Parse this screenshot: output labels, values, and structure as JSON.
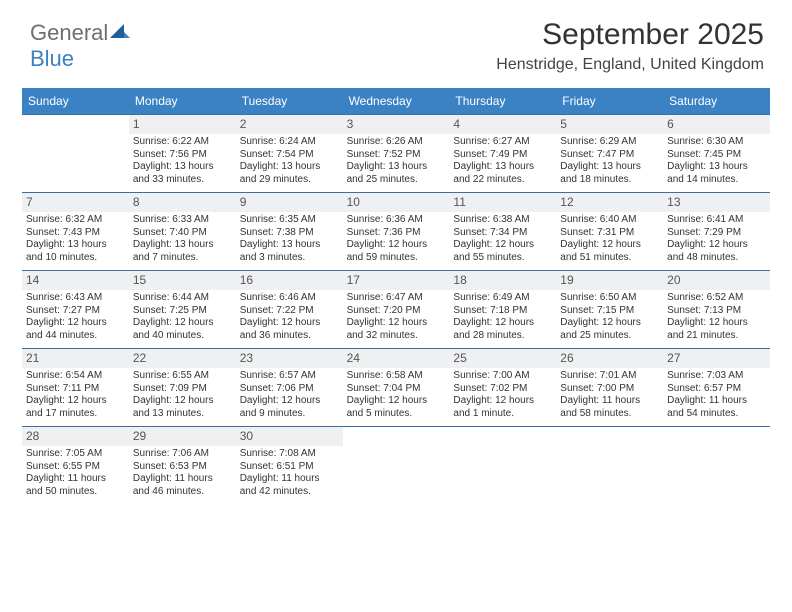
{
  "brand": {
    "word1": "General",
    "word2": "Blue"
  },
  "title": "September 2025",
  "subtitle": "Henstridge, England, United Kingdom",
  "weekdays": [
    "Sunday",
    "Monday",
    "Tuesday",
    "Wednesday",
    "Thursday",
    "Friday",
    "Saturday"
  ],
  "colors": {
    "header_bg": "#3b82c4",
    "header_fg": "#ffffff",
    "rule": "#3b6ea0",
    "daynum_bg": "#eef0f2"
  },
  "grid_cols": 7,
  "lead_blanks": 1,
  "days": [
    {
      "n": "1",
      "sunrise": "Sunrise: 6:22 AM",
      "sunset": "Sunset: 7:56 PM",
      "daylight": "Daylight: 13 hours and 33 minutes."
    },
    {
      "n": "2",
      "sunrise": "Sunrise: 6:24 AM",
      "sunset": "Sunset: 7:54 PM",
      "daylight": "Daylight: 13 hours and 29 minutes."
    },
    {
      "n": "3",
      "sunrise": "Sunrise: 6:26 AM",
      "sunset": "Sunset: 7:52 PM",
      "daylight": "Daylight: 13 hours and 25 minutes."
    },
    {
      "n": "4",
      "sunrise": "Sunrise: 6:27 AM",
      "sunset": "Sunset: 7:49 PM",
      "daylight": "Daylight: 13 hours and 22 minutes."
    },
    {
      "n": "5",
      "sunrise": "Sunrise: 6:29 AM",
      "sunset": "Sunset: 7:47 PM",
      "daylight": "Daylight: 13 hours and 18 minutes."
    },
    {
      "n": "6",
      "sunrise": "Sunrise: 6:30 AM",
      "sunset": "Sunset: 7:45 PM",
      "daylight": "Daylight: 13 hours and 14 minutes."
    },
    {
      "n": "7",
      "sunrise": "Sunrise: 6:32 AM",
      "sunset": "Sunset: 7:43 PM",
      "daylight": "Daylight: 13 hours and 10 minutes."
    },
    {
      "n": "8",
      "sunrise": "Sunrise: 6:33 AM",
      "sunset": "Sunset: 7:40 PM",
      "daylight": "Daylight: 13 hours and 7 minutes."
    },
    {
      "n": "9",
      "sunrise": "Sunrise: 6:35 AM",
      "sunset": "Sunset: 7:38 PM",
      "daylight": "Daylight: 13 hours and 3 minutes."
    },
    {
      "n": "10",
      "sunrise": "Sunrise: 6:36 AM",
      "sunset": "Sunset: 7:36 PM",
      "daylight": "Daylight: 12 hours and 59 minutes."
    },
    {
      "n": "11",
      "sunrise": "Sunrise: 6:38 AM",
      "sunset": "Sunset: 7:34 PM",
      "daylight": "Daylight: 12 hours and 55 minutes."
    },
    {
      "n": "12",
      "sunrise": "Sunrise: 6:40 AM",
      "sunset": "Sunset: 7:31 PM",
      "daylight": "Daylight: 12 hours and 51 minutes."
    },
    {
      "n": "13",
      "sunrise": "Sunrise: 6:41 AM",
      "sunset": "Sunset: 7:29 PM",
      "daylight": "Daylight: 12 hours and 48 minutes."
    },
    {
      "n": "14",
      "sunrise": "Sunrise: 6:43 AM",
      "sunset": "Sunset: 7:27 PM",
      "daylight": "Daylight: 12 hours and 44 minutes."
    },
    {
      "n": "15",
      "sunrise": "Sunrise: 6:44 AM",
      "sunset": "Sunset: 7:25 PM",
      "daylight": "Daylight: 12 hours and 40 minutes."
    },
    {
      "n": "16",
      "sunrise": "Sunrise: 6:46 AM",
      "sunset": "Sunset: 7:22 PM",
      "daylight": "Daylight: 12 hours and 36 minutes."
    },
    {
      "n": "17",
      "sunrise": "Sunrise: 6:47 AM",
      "sunset": "Sunset: 7:20 PM",
      "daylight": "Daylight: 12 hours and 32 minutes."
    },
    {
      "n": "18",
      "sunrise": "Sunrise: 6:49 AM",
      "sunset": "Sunset: 7:18 PM",
      "daylight": "Daylight: 12 hours and 28 minutes."
    },
    {
      "n": "19",
      "sunrise": "Sunrise: 6:50 AM",
      "sunset": "Sunset: 7:15 PM",
      "daylight": "Daylight: 12 hours and 25 minutes."
    },
    {
      "n": "20",
      "sunrise": "Sunrise: 6:52 AM",
      "sunset": "Sunset: 7:13 PM",
      "daylight": "Daylight: 12 hours and 21 minutes."
    },
    {
      "n": "21",
      "sunrise": "Sunrise: 6:54 AM",
      "sunset": "Sunset: 7:11 PM",
      "daylight": "Daylight: 12 hours and 17 minutes."
    },
    {
      "n": "22",
      "sunrise": "Sunrise: 6:55 AM",
      "sunset": "Sunset: 7:09 PM",
      "daylight": "Daylight: 12 hours and 13 minutes."
    },
    {
      "n": "23",
      "sunrise": "Sunrise: 6:57 AM",
      "sunset": "Sunset: 7:06 PM",
      "daylight": "Daylight: 12 hours and 9 minutes."
    },
    {
      "n": "24",
      "sunrise": "Sunrise: 6:58 AM",
      "sunset": "Sunset: 7:04 PM",
      "daylight": "Daylight: 12 hours and 5 minutes."
    },
    {
      "n": "25",
      "sunrise": "Sunrise: 7:00 AM",
      "sunset": "Sunset: 7:02 PM",
      "daylight": "Daylight: 12 hours and 1 minute."
    },
    {
      "n": "26",
      "sunrise": "Sunrise: 7:01 AM",
      "sunset": "Sunset: 7:00 PM",
      "daylight": "Daylight: 11 hours and 58 minutes."
    },
    {
      "n": "27",
      "sunrise": "Sunrise: 7:03 AM",
      "sunset": "Sunset: 6:57 PM",
      "daylight": "Daylight: 11 hours and 54 minutes."
    },
    {
      "n": "28",
      "sunrise": "Sunrise: 7:05 AM",
      "sunset": "Sunset: 6:55 PM",
      "daylight": "Daylight: 11 hours and 50 minutes."
    },
    {
      "n": "29",
      "sunrise": "Sunrise: 7:06 AM",
      "sunset": "Sunset: 6:53 PM",
      "daylight": "Daylight: 11 hours and 46 minutes."
    },
    {
      "n": "30",
      "sunrise": "Sunrise: 7:08 AM",
      "sunset": "Sunset: 6:51 PM",
      "daylight": "Daylight: 11 hours and 42 minutes."
    }
  ]
}
